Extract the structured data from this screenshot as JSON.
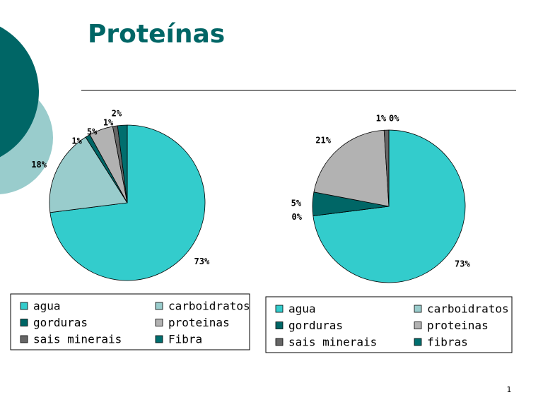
{
  "slide": {
    "title": "Proteínas",
    "page_number": "1"
  },
  "chart_data": [
    {
      "type": "pie",
      "categories": [
        "agua",
        "carboidratos",
        "gorduras",
        "proteinas",
        "sais minerais",
        "Fibra"
      ],
      "values": [
        73,
        18,
        1,
        5,
        1,
        2
      ],
      "value_labels": [
        "73%",
        "18%",
        "1%",
        "5%",
        "1%",
        "2%"
      ],
      "colors": [
        "#33CCCC",
        "#99CCCC",
        "#006666",
        "#B2B2B2",
        "#666666",
        "#006E6E"
      ]
    },
    {
      "type": "pie",
      "categories": [
        "agua",
        "carboidratos",
        "gorduras",
        "proteinas",
        "sais minerais",
        "fibras"
      ],
      "values": [
        73,
        0,
        5,
        21,
        1,
        0
      ],
      "value_labels": [
        "73%",
        "0%",
        "5%",
        "21%",
        "1%",
        "0%"
      ],
      "colors": [
        "#33CCCC",
        "#99CCCC",
        "#006666",
        "#B2B2B2",
        "#666666",
        "#006E6E"
      ]
    }
  ]
}
